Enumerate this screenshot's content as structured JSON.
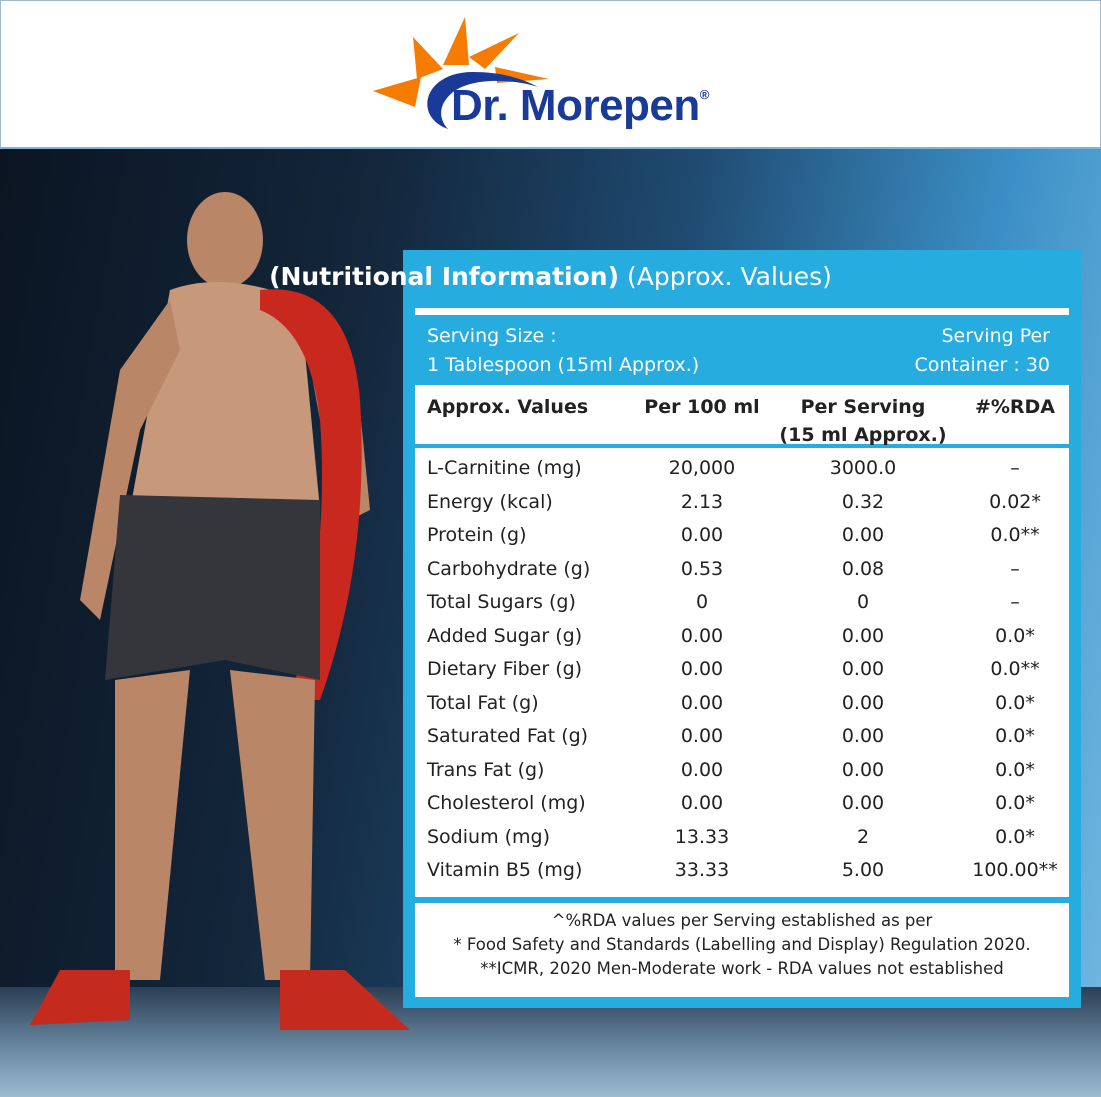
{
  "brand": {
    "name": "Dr. Morepen",
    "registered": "®",
    "colors": {
      "sun": "#f57c00",
      "text": "#1a3a9a"
    }
  },
  "panel": {
    "title_bold": "(Nutritional Information)",
    "title_regular": "(Approx. Values)",
    "serving_size_label": "Serving Size :",
    "serving_size_value": "1 Tablespoon (15ml Approx.)",
    "serving_per_label": "Serving Per",
    "serving_per_value": "Container : 30",
    "accent": "#27ace0"
  },
  "table": {
    "headers": [
      "Approx. Values",
      "Per 100 ml",
      "Per Serving",
      "(15 ml Approx.)",
      "#%RDA"
    ],
    "rows": [
      [
        "L-Carnitine (mg)",
        "20,000",
        "3000.0",
        "–"
      ],
      [
        "Energy (kcal)",
        "2.13",
        "0.32",
        "0.02*"
      ],
      [
        "Protein (g)",
        "0.00",
        "0.00",
        "0.0**"
      ],
      [
        "Carbohydrate (g)",
        "0.53",
        "0.08",
        "–"
      ],
      [
        "Total Sugars (g)",
        "0",
        "0",
        "–"
      ],
      [
        "Added Sugar (g)",
        "0.00",
        "0.00",
        "0.0*"
      ],
      [
        "Dietary Fiber (g)",
        "0.00",
        "0.00",
        "0.0**"
      ],
      [
        "Total Fat (g)",
        "0.00",
        "0.00",
        "0.0*"
      ],
      [
        "Saturated Fat (g)",
        "0.00",
        "0.00",
        "0.0*"
      ],
      [
        "Trans Fat (g)",
        "0.00",
        "0.00",
        "0.0*"
      ],
      [
        "Cholesterol (mg)",
        "0.00",
        "0.00",
        "0.0*"
      ],
      [
        "Sodium (mg)",
        "13.33",
        "2",
        "0.0*"
      ],
      [
        "Vitamin B5 (mg)",
        "33.33",
        "5.00",
        "100.00**"
      ]
    ]
  },
  "footnotes": [
    "^%RDA values per Serving established as per",
    "* Food Safety and Standards (Labelling and Display) Regulation 2020.",
    "**ICMR, 2020 Men-Moderate work - RDA values not established"
  ]
}
